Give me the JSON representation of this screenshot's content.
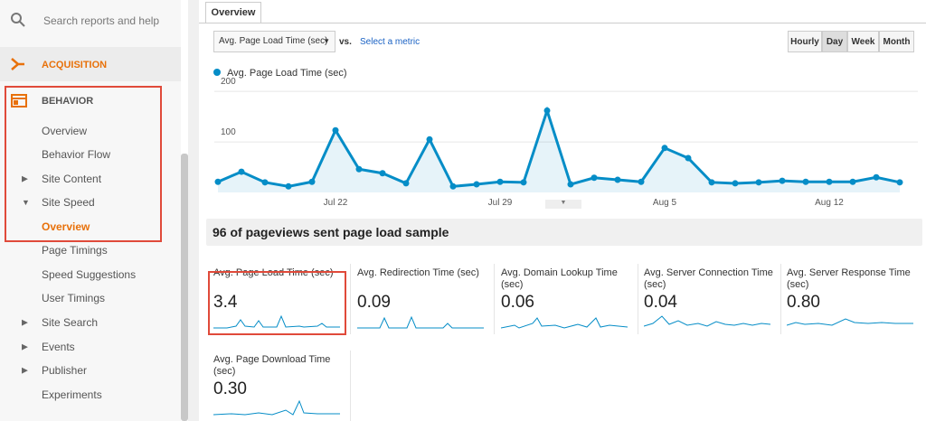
{
  "sidebar": {
    "search_placeholder": "Search reports and help",
    "sections": [
      "ACQUISITION",
      "BEHAVIOR"
    ],
    "items": [
      "Overview",
      "Behavior Flow",
      "Site Content",
      "Site Speed",
      "Overview",
      "Page Timings",
      "Speed Suggestions",
      "User Timings",
      "Site Search",
      "Events",
      "Publisher",
      "Experiments"
    ]
  },
  "tab": "Overview",
  "metric_select": "Avg. Page Load Time (sec)",
  "vs": "vs.",
  "select_metric": "Select a metric",
  "granularity": [
    "Hourly",
    "Day",
    "Week",
    "Month"
  ],
  "chart_data": {
    "type": "line",
    "categories": [
      null,
      null,
      null,
      null,
      null,
      "Jul 22",
      null,
      null,
      null,
      null,
      null,
      null,
      "Jul 29",
      null,
      null,
      null,
      null,
      null,
      null,
      "Aug 5",
      null,
      null,
      null,
      null,
      null,
      null,
      "Aug 12",
      null,
      null,
      null
    ],
    "series": [
      {
        "name": "Avg. Page Load Time (sec)",
        "color": "#058dc7",
        "values": [
          21,
          41,
          20,
          12,
          21,
          123,
          46,
          38,
          18,
          105,
          12,
          16,
          21,
          20,
          162,
          16,
          29,
          25,
          21,
          88,
          68,
          20,
          18,
          20,
          23,
          21,
          21,
          21,
          30,
          20
        ]
      }
    ],
    "ylim": [
      0,
      220
    ],
    "yticks": [
      100,
      200
    ],
    "grid": true
  },
  "summary_heading": "96 of pageviews sent page load sample",
  "metrics": [
    {
      "label": "Avg. Page Load Time (sec)",
      "value": "3.4"
    },
    {
      "label": "Avg. Redirection Time (sec)",
      "value": "0.09"
    },
    {
      "label": "Avg. Domain Lookup Time (sec)",
      "value": "0.06"
    },
    {
      "label": "Avg. Server Connection Time (sec)",
      "value": "0.04"
    },
    {
      "label": "Avg. Server Response Time (sec)",
      "value": "0.80"
    },
    {
      "label": "Avg. Page Download Time (sec)",
      "value": "0.30"
    }
  ]
}
